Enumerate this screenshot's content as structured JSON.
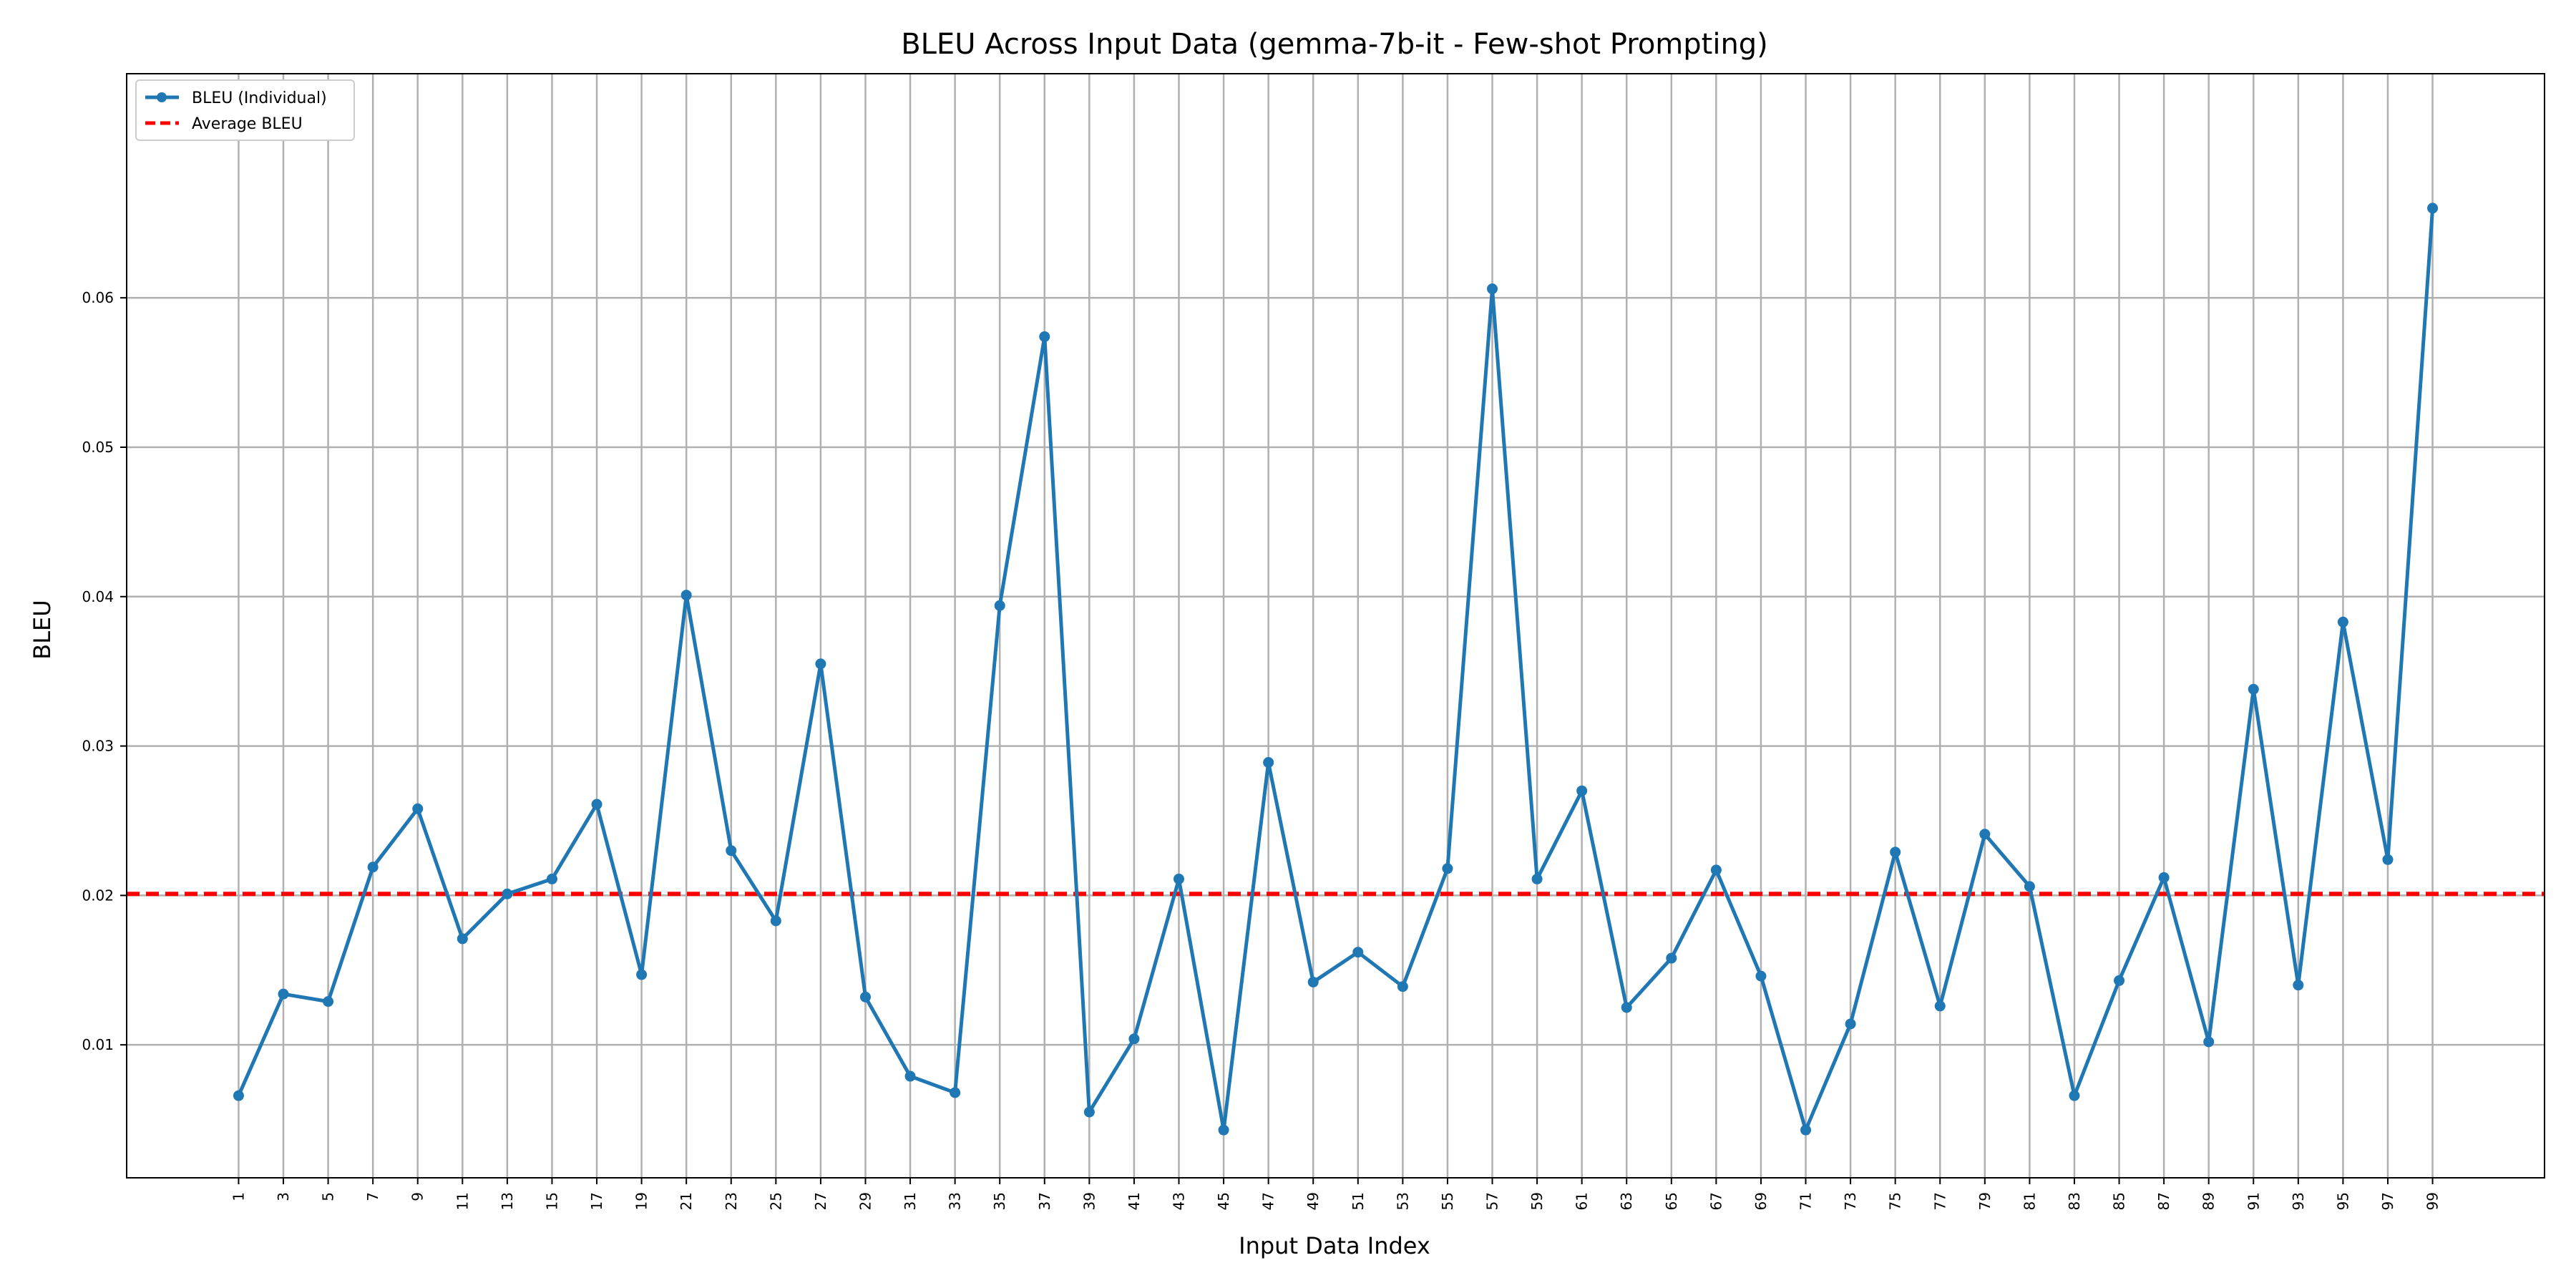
{
  "chart_data": {
    "type": "line",
    "title": "BLEU Across Input Data (gemma-7b-it - Few-shot Prompting)",
    "xlabel": "Input Data Index",
    "ylabel": "BLEU",
    "x": [
      1,
      3,
      5,
      7,
      9,
      11,
      13,
      15,
      17,
      19,
      21,
      23,
      25,
      27,
      29,
      31,
      33,
      35,
      37,
      39,
      41,
      43,
      45,
      47,
      49,
      51,
      53,
      55,
      57,
      59,
      61,
      63,
      65,
      67,
      69,
      71,
      73,
      75,
      77,
      79,
      81,
      83,
      85,
      87,
      89,
      91,
      93,
      95,
      97,
      99
    ],
    "series": [
      {
        "name": "BLEU (Individual)",
        "color": "#1f77b4",
        "values": [
          0.0066,
          0.0134,
          0.0129,
          0.0219,
          0.0258,
          0.0171,
          0.0201,
          0.0211,
          0.0261,
          0.0147,
          0.0401,
          0.023,
          0.0183,
          0.0355,
          0.0132,
          0.0079,
          0.0068,
          0.0394,
          0.0574,
          0.0055,
          0.0104,
          0.0211,
          0.0043,
          0.0289,
          0.0142,
          0.0162,
          0.0139,
          0.0218,
          0.0606,
          0.0211,
          0.027,
          0.0125,
          0.0158,
          0.0217,
          0.0146,
          0.0043,
          0.0114,
          0.0229,
          0.0126,
          0.0241,
          0.0206,
          0.0066,
          0.0143,
          0.0212,
          0.0102,
          0.0338,
          0.014,
          0.0383,
          0.0224,
          0.066
        ]
      }
    ],
    "average": {
      "name": "Average BLEU",
      "value": 0.0201,
      "color": "#ff0000"
    },
    "ylim": [
      0.0011,
      0.075
    ],
    "xlim": [
      -4.0,
      104.0
    ],
    "yticks": [
      0.01,
      0.02,
      0.03,
      0.04,
      0.05,
      0.06
    ],
    "ytick_labels": [
      "0.01",
      "0.02",
      "0.03",
      "0.04",
      "0.05",
      "0.06"
    ],
    "grid": true,
    "legend_position": "top-left"
  }
}
